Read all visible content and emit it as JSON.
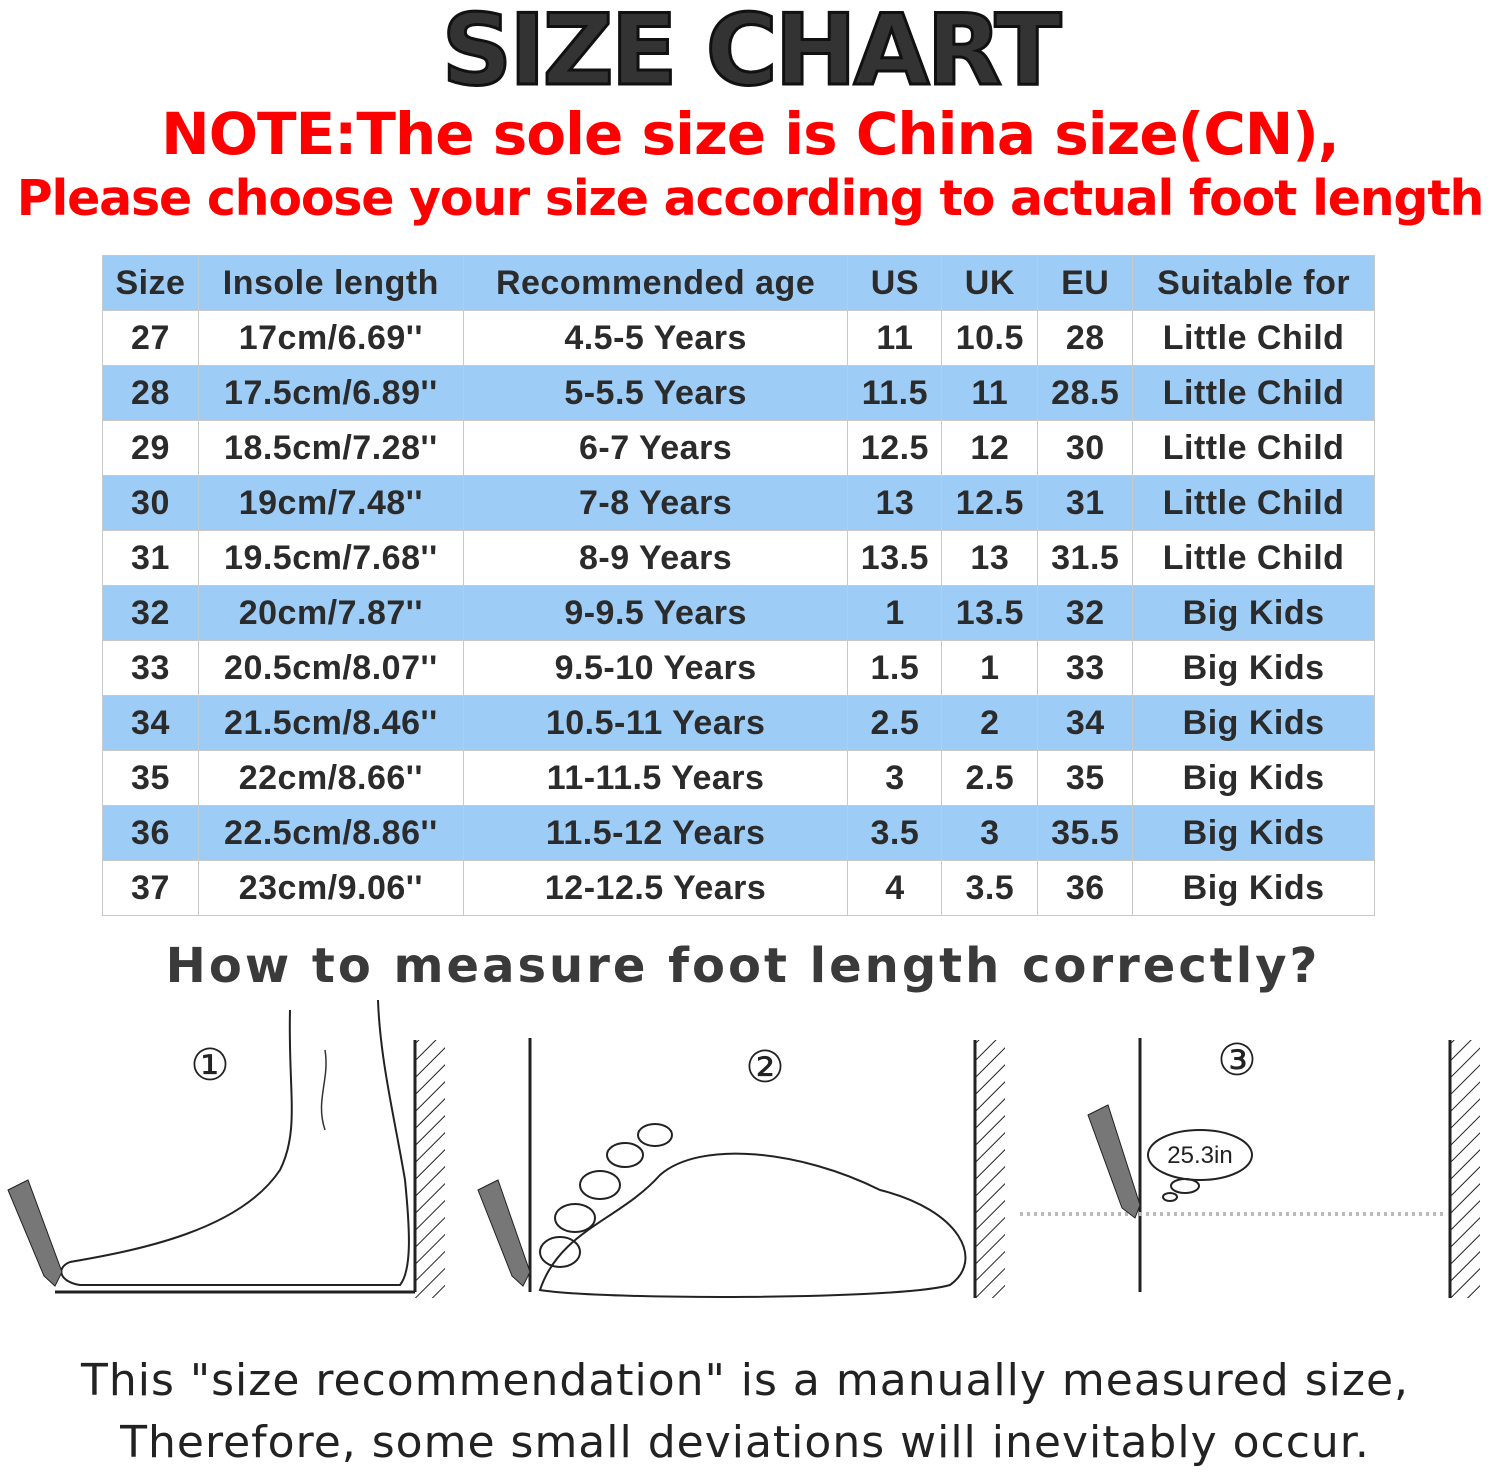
{
  "title": "SIZE CHART",
  "note_line1": "NOTE:The sole size is China size(CN),",
  "note_line2": "Please choose your size according to actual foot length",
  "table": {
    "headers": [
      "Size",
      "Insole length",
      "Recommended age",
      "US",
      "UK",
      "EU",
      "Suitable for"
    ],
    "header_color": "#9dccf7",
    "rows": [
      [
        "27",
        "17cm/6.69''",
        "4.5-5 Years",
        "11",
        "10.5",
        "28",
        "Little Child"
      ],
      [
        "28",
        "17.5cm/6.89''",
        "5-5.5 Years",
        "11.5",
        "11",
        "28.5",
        "Little Child"
      ],
      [
        "29",
        "18.5cm/7.28''",
        "6-7 Years",
        "12.5",
        "12",
        "30",
        "Little Child"
      ],
      [
        "30",
        "19cm/7.48''",
        "7-8 Years",
        "13",
        "12.5",
        "31",
        "Little Child"
      ],
      [
        "31",
        "19.5cm/7.68''",
        "8-9 Years",
        "13.5",
        "13",
        "31.5",
        "Little Child"
      ],
      [
        "32",
        "20cm/7.87''",
        "9-9.5 Years",
        "1",
        "13.5",
        "32",
        "Big Kids"
      ],
      [
        "33",
        "20.5cm/8.07''",
        "9.5-10 Years",
        "1.5",
        "1",
        "33",
        "Big Kids"
      ],
      [
        "34",
        "21.5cm/8.46''",
        "10.5-11 Years",
        "2.5",
        "2",
        "34",
        "Big Kids"
      ],
      [
        "35",
        "22cm/8.66''",
        "11-11.5 Years",
        "3",
        "2.5",
        "35",
        "Big Kids"
      ],
      [
        "36",
        "22.5cm/8.86''",
        "11.5-12 Years",
        "3.5",
        "3",
        "35.5",
        "Big Kids"
      ],
      [
        "37",
        "23cm/9.06''",
        "12-12.5 Years",
        "4",
        "3.5",
        "36",
        "Big Kids"
      ]
    ]
  },
  "howto_title": "How to measure foot length correctly?",
  "steps": [
    "①",
    "②",
    "③"
  ],
  "measure_bubble": "25.3in",
  "footer_line1": "This \"size recommendation\" is a manually measured size,",
  "footer_line2": "Therefore, some small deviations will inevitably occur."
}
